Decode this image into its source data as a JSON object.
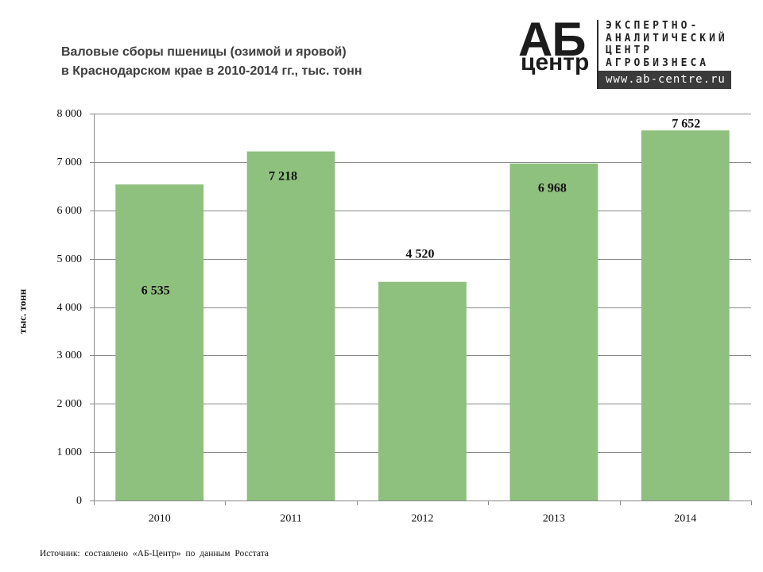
{
  "chart_data": {
    "type": "bar",
    "title_lines": [
      "Валовые сборы пшеницы (озимой и яровой)",
      "в Краснодарском крае в 2010-2014 гг., тыс. тонн"
    ],
    "categories": [
      "2010",
      "2011",
      "2012",
      "2013",
      "2014"
    ],
    "values": [
      6535,
      7218,
      4520,
      6968,
      7652
    ],
    "value_labels": [
      "6 535",
      "7 218",
      "4 520",
      "6 968",
      "7 652"
    ],
    "xlabel": "",
    "ylabel": "тыс. тонн",
    "ylim": [
      0,
      8000
    ],
    "yticks": [
      0,
      1000,
      2000,
      3000,
      4000,
      5000,
      6000,
      7000,
      8000
    ],
    "ytick_labels": [
      "0",
      "1 000",
      "2 000",
      "3 000",
      "4 000",
      "5 000",
      "6 000",
      "7 000",
      "8 000"
    ],
    "grid": true,
    "bar_color": "#8ec07e",
    "grid_color": "#8a8a8a"
  },
  "logo": {
    "mark_top": "АБ",
    "mark_bottom": "центр",
    "lines": [
      "ЭКСПЕРТНО-",
      "АНАЛИТИЧЕСКИЙ",
      "ЦЕНТР",
      "АГРОБИЗНЕСА"
    ],
    "url": "www.ab-centre.ru"
  },
  "footer": {
    "source": "Источник: составлено «АБ-Центр» по данным Росстата"
  }
}
